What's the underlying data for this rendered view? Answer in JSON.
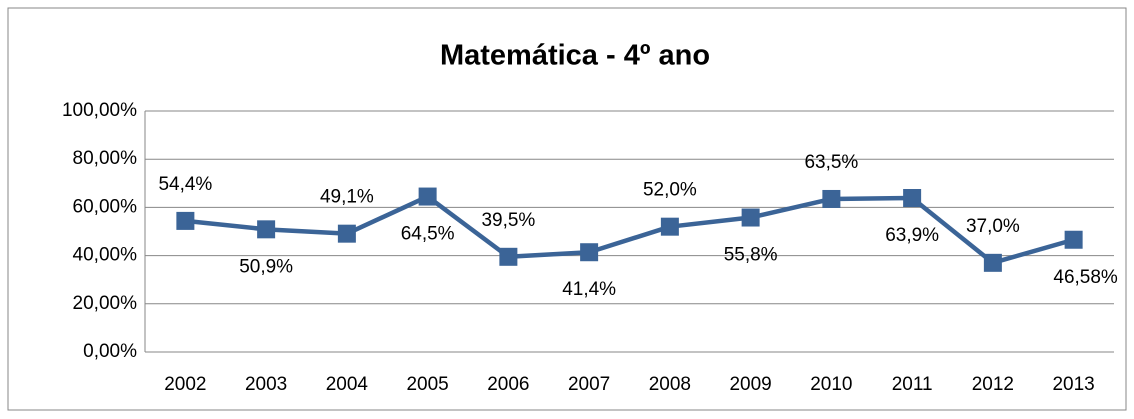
{
  "chart_data": {
    "type": "line",
    "title": "Matemática - 4º ano",
    "categories": [
      "2002",
      "2003",
      "2004",
      "2005",
      "2006",
      "2007",
      "2008",
      "2009",
      "2010",
      "2011",
      "2012",
      "2013"
    ],
    "series": [
      {
        "color": "#3b6497",
        "values": [
          54.4,
          50.9,
          49.1,
          64.5,
          39.5,
          41.4,
          52.0,
          55.8,
          63.5,
          63.9,
          37.0,
          46.58
        ],
        "value_labels": [
          "54,4%",
          "50,9%",
          "49,1%",
          "64,5%",
          "39,5%",
          "41,4%",
          "52,0%",
          "55,8%",
          "63,5%",
          "63,9%",
          "37,0%",
          "46,58%"
        ]
      }
    ],
    "ylim": [
      0,
      100
    ],
    "yticks": [
      {
        "value": 0,
        "label": "0,00%"
      },
      {
        "value": 20,
        "label": "20,00%"
      },
      {
        "value": 40,
        "label": "40,00%"
      },
      {
        "value": 60,
        "label": "60,00%"
      },
      {
        "value": 80,
        "label": "80,00%"
      },
      {
        "value": 100,
        "label": "100,00%"
      }
    ],
    "grid": true
  }
}
